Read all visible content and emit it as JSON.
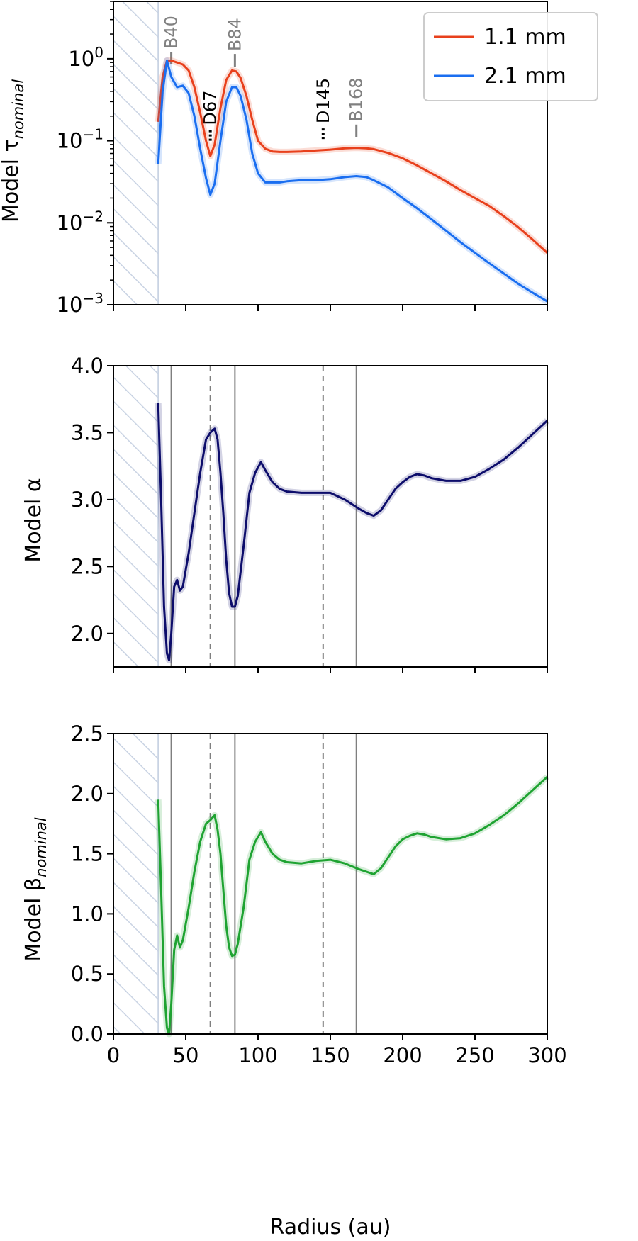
{
  "chart_data": [
    {
      "type": "line",
      "panel": "tau",
      "ylabel": "Model τ",
      "ylabel_sub": "nominal",
      "yscale": "log",
      "xlim": [
        0,
        300
      ],
      "ylim": [
        0.001,
        5
      ],
      "xticks": [
        0,
        50,
        100,
        150,
        200,
        250,
        300
      ],
      "yticks": [
        {
          "value": 0.001,
          "base": "10",
          "exp": "−3"
        },
        {
          "value": 0.01,
          "base": "10",
          "exp": "−2"
        },
        {
          "value": 0.1,
          "base": "10",
          "exp": "−1"
        },
        {
          "value": 1,
          "base": "10",
          "exp": "0"
        }
      ],
      "shaded_region": [
        0,
        31
      ],
      "legend_position": "top-right",
      "features": [
        {
          "name": "B40",
          "r": 40,
          "y": 0.85,
          "kind": "bright"
        },
        {
          "name": "D67",
          "r": 67,
          "y": 0.1,
          "kind": "dark"
        },
        {
          "name": "B84",
          "r": 84,
          "y": 0.8,
          "kind": "bright"
        },
        {
          "name": "D145",
          "r": 145,
          "y": 0.105,
          "kind": "dark"
        },
        {
          "name": "B168",
          "r": 168,
          "y": 0.11,
          "kind": "bright"
        }
      ],
      "series": [
        {
          "name": "1.1 mm",
          "color": "#e8401c",
          "x": [
            31,
            34,
            37,
            40,
            44,
            48,
            52,
            56,
            60,
            64,
            67,
            70,
            74,
            78,
            82,
            85,
            88,
            92,
            96,
            100,
            105,
            110,
            115,
            120,
            130,
            140,
            150,
            160,
            168,
            175,
            180,
            190,
            200,
            210,
            220,
            230,
            240,
            250,
            260,
            270,
            280,
            290,
            300
          ],
          "y": [
            0.17,
            0.6,
            0.95,
            0.95,
            0.9,
            0.85,
            0.72,
            0.45,
            0.22,
            0.1,
            0.065,
            0.09,
            0.25,
            0.55,
            0.72,
            0.7,
            0.58,
            0.35,
            0.18,
            0.1,
            0.08,
            0.074,
            0.073,
            0.073,
            0.074,
            0.076,
            0.078,
            0.081,
            0.082,
            0.081,
            0.079,
            0.071,
            0.061,
            0.05,
            0.04,
            0.032,
            0.025,
            0.02,
            0.016,
            0.012,
            0.0088,
            0.0062,
            0.0043
          ]
        },
        {
          "name": "2.1 mm",
          "color": "#1a6ef0",
          "x": [
            31,
            34,
            37,
            40,
            44,
            48,
            52,
            56,
            60,
            64,
            67,
            70,
            74,
            78,
            82,
            85,
            88,
            92,
            96,
            100,
            105,
            110,
            115,
            120,
            130,
            140,
            150,
            160,
            168,
            175,
            180,
            190,
            200,
            210,
            220,
            230,
            240,
            250,
            260,
            270,
            280,
            290,
            300
          ],
          "y": [
            0.052,
            0.4,
            0.95,
            0.6,
            0.45,
            0.47,
            0.38,
            0.2,
            0.08,
            0.035,
            0.022,
            0.03,
            0.1,
            0.3,
            0.45,
            0.45,
            0.35,
            0.18,
            0.07,
            0.04,
            0.031,
            0.031,
            0.031,
            0.032,
            0.033,
            0.033,
            0.034,
            0.036,
            0.037,
            0.036,
            0.033,
            0.027,
            0.02,
            0.015,
            0.011,
            0.008,
            0.0058,
            0.0043,
            0.0032,
            0.0024,
            0.0018,
            0.0014,
            0.0011
          ]
        }
      ]
    },
    {
      "type": "line",
      "panel": "alpha",
      "ylabel": "Model α",
      "xlim": [
        0,
        300
      ],
      "ylim": [
        1.75,
        4.0
      ],
      "xticks": [
        0,
        50,
        100,
        150,
        200,
        250,
        300
      ],
      "yticks": [
        2.0,
        2.5,
        3.0,
        3.5,
        4.0
      ],
      "ytick_labels": [
        "2.0",
        "2.5",
        "3.0",
        "3.5",
        "4.0"
      ],
      "shaded_region": [
        0,
        31
      ],
      "vlines": [
        {
          "r": 40,
          "style": "solid"
        },
        {
          "r": 67,
          "style": "dashed"
        },
        {
          "r": 84,
          "style": "solid"
        },
        {
          "r": 145,
          "style": "dashed"
        },
        {
          "r": 168,
          "style": "solid"
        }
      ],
      "series": [
        {
          "name": "",
          "color": "#0d0d6b",
          "x": [
            31,
            33,
            35,
            37,
            38.5,
            40,
            42,
            44,
            46,
            48,
            52,
            56,
            60,
            64,
            67,
            70,
            72,
            74,
            76,
            78,
            80,
            82,
            84,
            86,
            90,
            94,
            98,
            102,
            105,
            110,
            115,
            120,
            130,
            140,
            150,
            160,
            170,
            175,
            180,
            185,
            190,
            195,
            200,
            205,
            210,
            215,
            220,
            230,
            240,
            250,
            260,
            270,
            280,
            290,
            300
          ],
          "y": [
            3.72,
            3.0,
            2.2,
            1.85,
            1.8,
            2.0,
            2.35,
            2.4,
            2.32,
            2.35,
            2.6,
            2.9,
            3.2,
            3.45,
            3.5,
            3.53,
            3.45,
            3.2,
            2.9,
            2.55,
            2.3,
            2.2,
            2.2,
            2.28,
            2.65,
            3.05,
            3.2,
            3.28,
            3.22,
            3.13,
            3.08,
            3.06,
            3.05,
            3.05,
            3.05,
            3.0,
            2.93,
            2.9,
            2.88,
            2.92,
            3.0,
            3.08,
            3.13,
            3.17,
            3.19,
            3.18,
            3.16,
            3.14,
            3.14,
            3.17,
            3.23,
            3.3,
            3.39,
            3.49,
            3.59
          ]
        }
      ]
    },
    {
      "type": "line",
      "panel": "beta",
      "ylabel": "Model β",
      "ylabel_sub": "nominal",
      "xlabel": "Radius (au)",
      "xlim": [
        0,
        300
      ],
      "ylim": [
        0.0,
        2.5
      ],
      "xticks": [
        0,
        50,
        100,
        150,
        200,
        250,
        300
      ],
      "yticks": [
        0.0,
        0.5,
        1.0,
        1.5,
        2.0,
        2.5
      ],
      "ytick_labels": [
        "0.0",
        "0.5",
        "1.0",
        "1.5",
        "2.0",
        "2.5"
      ],
      "shaded_region": [
        0,
        31
      ],
      "vlines": [
        {
          "r": 40,
          "style": "solid"
        },
        {
          "r": 67,
          "style": "dashed"
        },
        {
          "r": 84,
          "style": "solid"
        },
        {
          "r": 145,
          "style": "dashed"
        },
        {
          "r": 168,
          "style": "solid"
        }
      ],
      "series": [
        {
          "name": "",
          "color": "#1fa332",
          "x": [
            31,
            33,
            35,
            37,
            38.5,
            40,
            42,
            44,
            46,
            48,
            52,
            56,
            60,
            64,
            67,
            70,
            72,
            74,
            76,
            78,
            80,
            82,
            84,
            86,
            90,
            94,
            98,
            102,
            105,
            110,
            115,
            120,
            130,
            140,
            150,
            160,
            170,
            175,
            180,
            185,
            190,
            195,
            200,
            205,
            210,
            215,
            220,
            230,
            240,
            250,
            260,
            270,
            280,
            290,
            300
          ],
          "y": [
            1.95,
            1.2,
            0.4,
            0.05,
            0.0,
            0.25,
            0.7,
            0.82,
            0.72,
            0.78,
            1.05,
            1.35,
            1.6,
            1.75,
            1.78,
            1.82,
            1.7,
            1.5,
            1.2,
            0.9,
            0.72,
            0.65,
            0.66,
            0.75,
            1.05,
            1.45,
            1.6,
            1.68,
            1.6,
            1.5,
            1.45,
            1.43,
            1.42,
            1.44,
            1.45,
            1.42,
            1.37,
            1.35,
            1.33,
            1.38,
            1.47,
            1.56,
            1.62,
            1.65,
            1.67,
            1.66,
            1.64,
            1.62,
            1.63,
            1.67,
            1.74,
            1.82,
            1.92,
            2.03,
            2.14
          ]
        }
      ]
    }
  ]
}
